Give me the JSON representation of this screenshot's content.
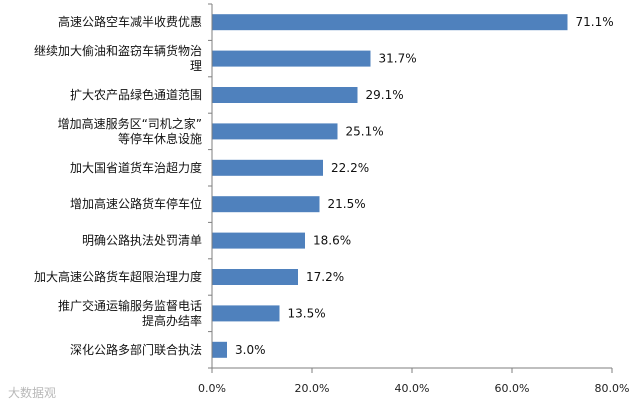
{
  "chart_data": {
    "type": "bar",
    "orientation": "horizontal",
    "categories": [
      [
        "高速公路空车减半收费优惠"
      ],
      [
        "继续加大偷油和盗窃车辆货物治",
        "理"
      ],
      [
        "扩大农产品绿色通道范围"
      ],
      [
        "增加高速服务区“司机之家”",
        "等停车休息设施"
      ],
      [
        "加大国省道货车治超力度"
      ],
      [
        "增加高速公路货车停车位"
      ],
      [
        "明确公路执法处罚清单"
      ],
      [
        "加大高速公路货车超限治理力度"
      ],
      [
        "推广交通运输服务监督电话",
        "提高办结率"
      ],
      [
        "深化公路多部门联合执法"
      ]
    ],
    "values": [
      71.1,
      31.7,
      29.1,
      25.1,
      22.2,
      21.5,
      18.6,
      17.2,
      13.5,
      3.0
    ],
    "value_labels": [
      "71.1%",
      "31.7%",
      "29.1%",
      "25.1%",
      "22.2%",
      "21.5%",
      "18.6%",
      "17.2%",
      "13.5%",
      "3.0%"
    ],
    "xlim": [
      0,
      80
    ],
    "xticks": [
      "0.0%",
      "20.0%",
      "40.0%",
      "60.0%",
      "80.0%"
    ],
    "bar_color": "#4f81bd",
    "grid": false
  },
  "watermark": "大数据观"
}
